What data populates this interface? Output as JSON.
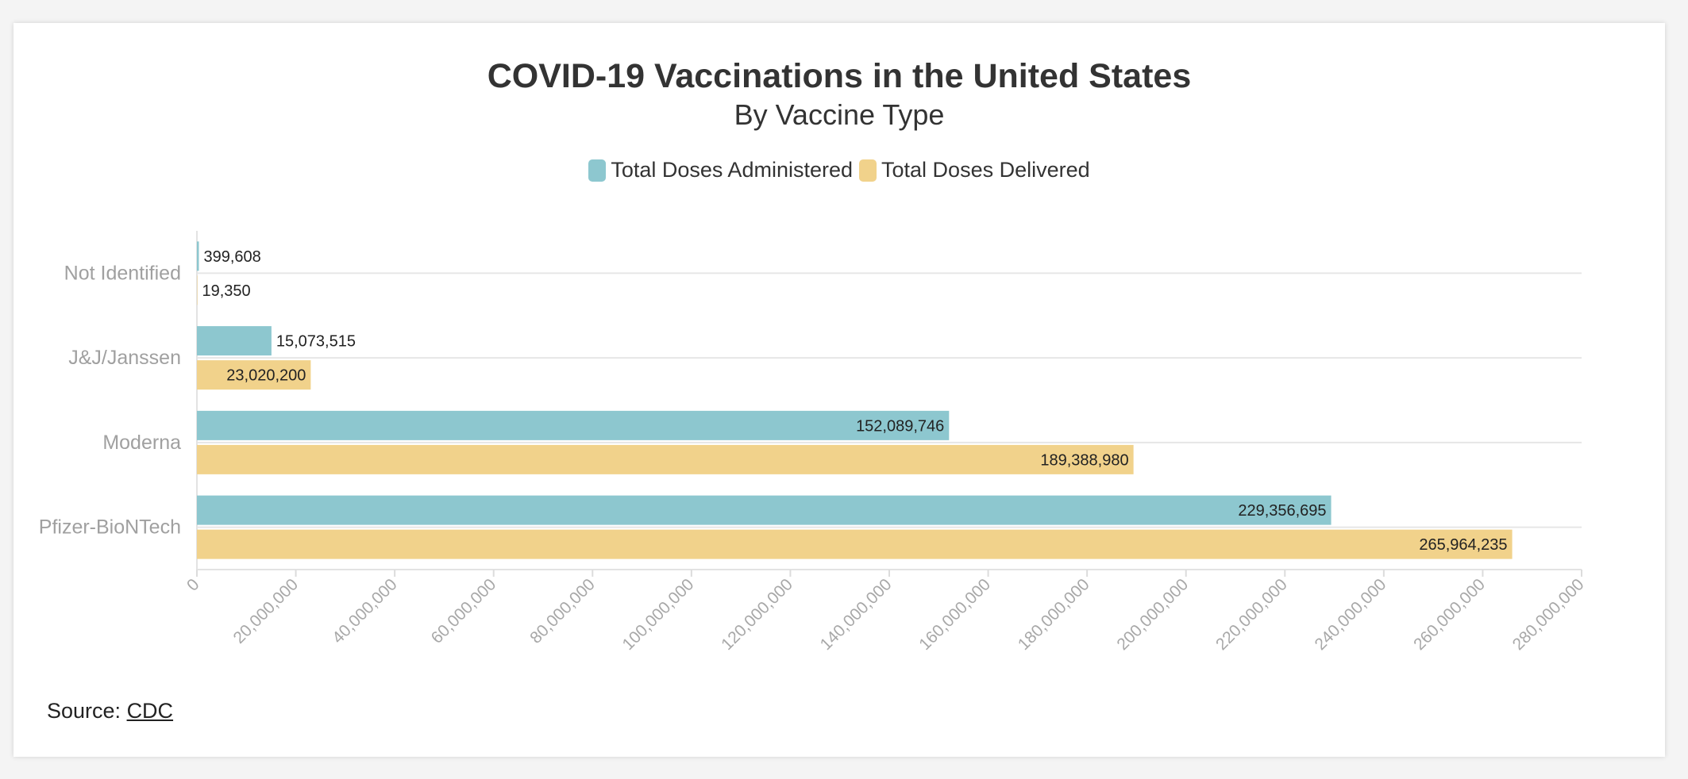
{
  "chart_data": {
    "type": "bar",
    "orientation": "horizontal",
    "title": "COVID-19 Vaccinations in the United States",
    "subtitle": "By Vaccine Type",
    "categories": [
      "Not Identified",
      "J&J/Janssen",
      "Moderna",
      "Pfizer-BioNTech"
    ],
    "series": [
      {
        "name": "Total Doses Administered",
        "color": "#8dc7cf",
        "values": [
          399608,
          15073515,
          152089746,
          229356695
        ],
        "labels": [
          "399,608",
          "15,073,515",
          "152,089,746",
          "229,356,695"
        ]
      },
      {
        "name": "Total Doses Delivered",
        "color": "#f1d28b",
        "values": [
          19350,
          23020200,
          189388980,
          265964235
        ],
        "labels": [
          "19,350",
          "23,020,200",
          "189,388,980",
          "265,964,235"
        ]
      }
    ],
    "xlim": [
      0,
      280000000
    ],
    "xticks": [
      0,
      20000000,
      40000000,
      60000000,
      80000000,
      100000000,
      120000000,
      140000000,
      160000000,
      180000000,
      200000000,
      220000000,
      240000000,
      260000000,
      280000000
    ],
    "xtick_labels": [
      "0",
      "20,000,000",
      "40,000,000",
      "60,000,000",
      "80,000,000",
      "100,000,000",
      "120,000,000",
      "140,000,000",
      "160,000,000",
      "180,000,000",
      "200,000,000",
      "220,000,000",
      "240,000,000",
      "260,000,000",
      "280,000,000"
    ],
    "legend_position": "top-center",
    "grid": "horizontal"
  },
  "source": {
    "prefix": "Source: ",
    "link_text": "CDC"
  }
}
